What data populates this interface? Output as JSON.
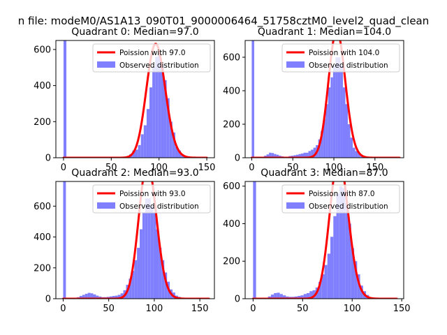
{
  "figure": {
    "suptitle": "n file: modeM0/AS1A13_090T01_9000006464_51758cztM0_level2_quad_clean"
  },
  "colors": {
    "poisson_line": "#ff0000",
    "histogram_fill": "#8080ff",
    "axes": "#000000"
  },
  "chart_data": [
    {
      "type": "bar",
      "title": "Quadrant 0: Median=97.0",
      "xlabel": "",
      "ylabel": "",
      "xlim": [
        -8,
        158
      ],
      "ylim": [
        0,
        650
      ],
      "xticks": [
        0,
        50,
        100,
        150
      ],
      "yticks": [
        0,
        200,
        400,
        600
      ],
      "legend": {
        "position": "top-right",
        "entries": [
          "Poission with 97.0",
          "Observed distribution"
        ]
      },
      "poisson": {
        "name": "Poission with 97.0",
        "mean": 97.0,
        "x_range": [
          0,
          150
        ]
      },
      "histogram": {
        "name": "Observed distribution",
        "bin_width": 3,
        "bins": [
          [
            0,
            650
          ],
          [
            63,
            3
          ],
          [
            66,
            8
          ],
          [
            69,
            20
          ],
          [
            72,
            40
          ],
          [
            75,
            45
          ],
          [
            78,
            70
          ],
          [
            81,
            130
          ],
          [
            84,
            180
          ],
          [
            87,
            270
          ],
          [
            90,
            390
          ],
          [
            93,
            505
          ],
          [
            96,
            560
          ],
          [
            99,
            575
          ],
          [
            102,
            520
          ],
          [
            105,
            430
          ],
          [
            108,
            330
          ],
          [
            111,
            200
          ],
          [
            114,
            140
          ],
          [
            117,
            60
          ],
          [
            120,
            40
          ],
          [
            123,
            20
          ],
          [
            126,
            8
          ],
          [
            129,
            3
          ]
        ]
      }
    },
    {
      "type": "bar",
      "title": "Quadrant 1: Median=104.0",
      "xlabel": "",
      "ylabel": "",
      "xlim": [
        -8,
        185
      ],
      "ylim": [
        0,
        700
      ],
      "xticks": [
        0,
        50,
        100,
        150
      ],
      "yticks": [
        0,
        200,
        400,
        600
      ],
      "legend": {
        "position": "top-right",
        "entries": [
          "Poission with 104.0",
          "Observed distribution"
        ]
      },
      "poisson": {
        "name": "Poission with 104.0",
        "mean": 104.0,
        "x_range": [
          0,
          180
        ]
      },
      "histogram": {
        "name": "Observed distribution",
        "bin_width": 3,
        "bins": [
          [
            0,
            700
          ],
          [
            15,
            12
          ],
          [
            18,
            20
          ],
          [
            21,
            30
          ],
          [
            24,
            28
          ],
          [
            27,
            22
          ],
          [
            30,
            18
          ],
          [
            33,
            12
          ],
          [
            36,
            8
          ],
          [
            39,
            6
          ],
          [
            42,
            6
          ],
          [
            45,
            10
          ],
          [
            48,
            12
          ],
          [
            51,
            15
          ],
          [
            54,
            18
          ],
          [
            57,
            22
          ],
          [
            60,
            25
          ],
          [
            63,
            30
          ],
          [
            66,
            30
          ],
          [
            69,
            40
          ],
          [
            72,
            48
          ],
          [
            75,
            60
          ],
          [
            78,
            75
          ],
          [
            81,
            110
          ],
          [
            84,
            160
          ],
          [
            87,
            230
          ],
          [
            90,
            320
          ],
          [
            93,
            420
          ],
          [
            96,
            480
          ],
          [
            99,
            550
          ],
          [
            102,
            600
          ],
          [
            105,
            600
          ],
          [
            108,
            550
          ],
          [
            111,
            420
          ],
          [
            114,
            320
          ],
          [
            117,
            200
          ],
          [
            120,
            120
          ],
          [
            123,
            60
          ],
          [
            126,
            40
          ],
          [
            129,
            30
          ],
          [
            132,
            10
          ],
          [
            135,
            5
          ]
        ]
      }
    },
    {
      "type": "bar",
      "title": "Quadrant 2: Median=93.0",
      "xlabel": "",
      "ylabel": "",
      "xlim": [
        -8,
        166
      ],
      "ylim": [
        0,
        760
      ],
      "xticks": [
        0,
        50,
        100,
        150
      ],
      "yticks": [
        0,
        200,
        400,
        600
      ],
      "legend": {
        "position": "top-right",
        "entries": [
          "Poission with 93.0",
          "Observed distribution"
        ]
      },
      "poisson": {
        "name": "Poission with 93.0",
        "mean": 93.0,
        "x_range": [
          0,
          160
        ]
      },
      "histogram": {
        "name": "Observed distribution",
        "bin_width": 3,
        "bins": [
          [
            0,
            760
          ],
          [
            15,
            10
          ],
          [
            18,
            18
          ],
          [
            21,
            25
          ],
          [
            24,
            32
          ],
          [
            27,
            38
          ],
          [
            30,
            35
          ],
          [
            33,
            28
          ],
          [
            36,
            20
          ],
          [
            39,
            14
          ],
          [
            42,
            10
          ],
          [
            45,
            10
          ],
          [
            48,
            12
          ],
          [
            51,
            15
          ],
          [
            54,
            18
          ],
          [
            57,
            20
          ],
          [
            60,
            25
          ],
          [
            63,
            35
          ],
          [
            66,
            55
          ],
          [
            69,
            90
          ],
          [
            72,
            130
          ],
          [
            75,
            180
          ],
          [
            78,
            250
          ],
          [
            81,
            330
          ],
          [
            84,
            450
          ],
          [
            87,
            560
          ],
          [
            90,
            650
          ],
          [
            93,
            650
          ],
          [
            96,
            600
          ],
          [
            99,
            560
          ],
          [
            102,
            450
          ],
          [
            105,
            330
          ],
          [
            108,
            250
          ],
          [
            111,
            170
          ],
          [
            114,
            110
          ],
          [
            117,
            60
          ],
          [
            120,
            40
          ],
          [
            123,
            20
          ],
          [
            126,
            12
          ],
          [
            129,
            5
          ]
        ]
      }
    },
    {
      "type": "bar",
      "title": "Quadrant 3: Median=87.0",
      "xlabel": "",
      "ylabel": "",
      "xlim": [
        -8,
        152
      ],
      "ylim": [
        0,
        625
      ],
      "xticks": [
        0,
        50,
        100,
        150
      ],
      "yticks": [
        0,
        200,
        400,
        600
      ],
      "legend": {
        "position": "top-right",
        "entries": [
          "Poission with 87.0",
          "Observed distribution"
        ]
      },
      "poisson": {
        "name": "Poission with 87.0",
        "mean": 87.0,
        "x_range": [
          0,
          145
        ]
      },
      "histogram": {
        "name": "Observed distribution",
        "bin_width": 3,
        "bins": [
          [
            0,
            625
          ],
          [
            15,
            12
          ],
          [
            18,
            22
          ],
          [
            21,
            30
          ],
          [
            24,
            32
          ],
          [
            27,
            25
          ],
          [
            30,
            18
          ],
          [
            33,
            12
          ],
          [
            36,
            10
          ],
          [
            39,
            10
          ],
          [
            42,
            12
          ],
          [
            45,
            15
          ],
          [
            48,
            18
          ],
          [
            51,
            25
          ],
          [
            54,
            30
          ],
          [
            57,
            40
          ],
          [
            60,
            45
          ],
          [
            63,
            60
          ],
          [
            66,
            90
          ],
          [
            69,
            130
          ],
          [
            72,
            180
          ],
          [
            75,
            240
          ],
          [
            78,
            330
          ],
          [
            81,
            440
          ],
          [
            84,
            560
          ],
          [
            87,
            600
          ],
          [
            90,
            590
          ],
          [
            93,
            510
          ],
          [
            96,
            400
          ],
          [
            99,
            270
          ],
          [
            102,
            200
          ],
          [
            105,
            130
          ],
          [
            108,
            70
          ],
          [
            111,
            40
          ],
          [
            114,
            20
          ],
          [
            117,
            8
          ],
          [
            120,
            3
          ]
        ]
      }
    }
  ]
}
